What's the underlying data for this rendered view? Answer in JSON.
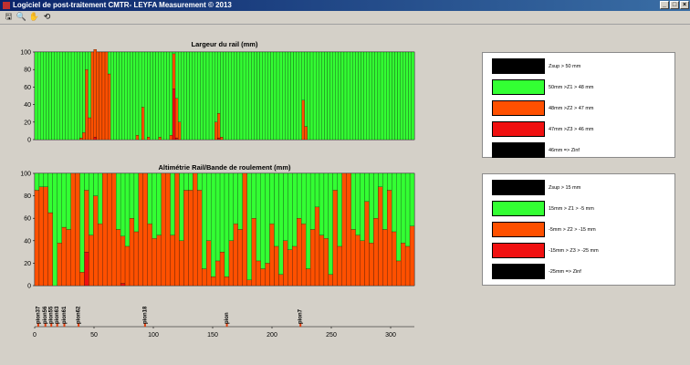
{
  "window": {
    "title": "Logiciel de post-traitement CMTR- LEYFA Measurement © 2013",
    "minimize_glyph": "_",
    "maximize_glyph": "□",
    "close_glyph": "×"
  },
  "toolbar": {
    "icons": [
      {
        "name": "save-icon",
        "glyph": "🖫"
      },
      {
        "name": "zoom-in-icon",
        "glyph": "🔍"
      },
      {
        "name": "pan-hand-icon",
        "glyph": "✋"
      },
      {
        "name": "rotate-icon",
        "glyph": "⟲"
      }
    ]
  },
  "colors": {
    "green": "#33ff33",
    "orange": "#ff5000",
    "red": "#f01010",
    "black": "#000000",
    "sleeper": "#e04010"
  },
  "chart_data": [
    {
      "type": "bar",
      "stacked": true,
      "title": "Largeur du rail (mm)",
      "ylim": [
        0,
        100
      ],
      "yticks": [
        0,
        20,
        40,
        60,
        80,
        100
      ],
      "xlim": [
        0,
        320
      ],
      "series_order": [
        "red",
        "orange",
        "green"
      ],
      "orange": [
        0,
        0,
        0,
        0,
        0,
        0,
        0,
        0,
        0,
        0,
        0,
        0,
        0,
        0,
        0,
        0,
        2,
        8,
        80,
        25,
        100,
        100,
        100,
        100,
        100,
        100,
        75,
        0,
        0,
        0,
        0,
        0,
        0,
        0,
        0,
        0,
        5,
        0,
        37,
        0,
        3,
        0,
        0,
        0,
        3,
        0,
        0,
        0,
        5,
        40,
        45,
        20,
        0,
        0,
        0,
        0,
        0,
        0,
        0,
        0,
        0,
        0,
        0,
        0,
        20,
        28,
        3,
        0,
        0,
        0,
        0,
        0,
        0,
        0,
        0,
        0,
        0,
        0,
        0,
        0,
        0,
        0,
        0,
        0,
        0,
        0,
        0,
        0,
        0,
        0,
        0,
        0,
        0,
        0,
        0,
        45,
        15,
        0,
        0,
        0,
        0,
        0,
        0,
        0,
        0,
        0,
        0,
        0,
        0,
        0,
        0,
        0,
        0,
        0,
        0,
        0,
        0,
        0,
        0,
        0,
        0,
        0,
        0,
        0,
        0,
        0,
        0,
        0,
        0,
        0,
        0,
        0,
        0,
        0,
        0
      ],
      "red": [
        0,
        0,
        0,
        0,
        0,
        0,
        0,
        0,
        0,
        0,
        0,
        0,
        0,
        0,
        0,
        0,
        0,
        0,
        0,
        0,
        0,
        3,
        0,
        0,
        0,
        0,
        0,
        0,
        0,
        0,
        0,
        0,
        0,
        0,
        0,
        0,
        0,
        0,
        0,
        0,
        0,
        0,
        0,
        0,
        0,
        0,
        0,
        0,
        0,
        58,
        2,
        0,
        0,
        0,
        0,
        0,
        0,
        0,
        0,
        0,
        0,
        0,
        0,
        0,
        0,
        2,
        0,
        0,
        0,
        0,
        0,
        0,
        0,
        0,
        0,
        0,
        0,
        0,
        0,
        0,
        0,
        0,
        0,
        0,
        0,
        0,
        0,
        0,
        0,
        0,
        0,
        0,
        0,
        0,
        0,
        0,
        0,
        0,
        0,
        0,
        0,
        0,
        0,
        0,
        0,
        0,
        0,
        0,
        0,
        0,
        0,
        0,
        0,
        0,
        0,
        0,
        0,
        0,
        0,
        0,
        0,
        0,
        0,
        0,
        0,
        0,
        0,
        0,
        0,
        0,
        0,
        0,
        0,
        0,
        0,
        0,
        0,
        0,
        0
      ]
    },
    {
      "type": "bar",
      "stacked": true,
      "title": "Altimétrie Rail/Bande de roulement (mm)",
      "ylim": [
        0,
        100
      ],
      "yticks": [
        0,
        20,
        40,
        60,
        80,
        100
      ],
      "xlim": [
        0,
        320
      ],
      "xticks": [
        0,
        50,
        100,
        150,
        200,
        250,
        300
      ],
      "series_order": [
        "red",
        "orange",
        "green"
      ],
      "orange": [
        85,
        88,
        88,
        65,
        0,
        38,
        52,
        50,
        100,
        100,
        12,
        55,
        45,
        80,
        55,
        100,
        100,
        100,
        50,
        42,
        35,
        60,
        48,
        100,
        100,
        55,
        42,
        45,
        100,
        100,
        45,
        100,
        40,
        85,
        85,
        100,
        85,
        15,
        40,
        8,
        22,
        30,
        8,
        40,
        55,
        50,
        100,
        5,
        60,
        22,
        15,
        20,
        55,
        35,
        10,
        40,
        32,
        35,
        60,
        55,
        15,
        50,
        70,
        45,
        42,
        10,
        85,
        35,
        100,
        100,
        50,
        45,
        40,
        75,
        38,
        60,
        88,
        50,
        85,
        48,
        22,
        38,
        35,
        53
      ],
      "red": [
        0,
        0,
        0,
        0,
        0,
        0,
        0,
        0,
        0,
        0,
        0,
        30,
        0,
        0,
        0,
        0,
        0,
        0,
        0,
        2,
        0,
        0,
        0,
        0,
        0,
        0,
        0,
        0,
        0,
        0,
        0,
        0,
        0,
        0,
        0,
        0,
        0,
        0,
        0,
        0,
        0,
        0,
        0,
        0,
        0,
        0,
        0,
        0,
        0,
        0,
        0,
        0,
        0,
        0,
        0,
        0,
        0,
        0,
        0,
        0,
        0,
        0,
        0,
        0,
        0,
        0,
        0,
        0,
        0,
        0,
        0,
        0,
        0,
        0,
        0,
        0,
        0,
        0,
        0,
        0,
        0,
        0,
        0,
        0
      ]
    },
    {
      "type": "scatter",
      "name": "sleeper-markers",
      "xlim": [
        0,
        320
      ],
      "labels": [
        {
          "text": "pion37",
          "x": 3
        },
        {
          "text": "pion56",
          "x": 9
        },
        {
          "text": "pion55",
          "x": 14
        },
        {
          "text": "pion63",
          "x": 19
        },
        {
          "text": "pion61",
          "x": 25
        },
        {
          "text": "pion62",
          "x": 37
        },
        {
          "text": "pion18",
          "x": 93
        },
        {
          "text": "pion",
          "x": 162
        },
        {
          "text": "pion7",
          "x": 224
        }
      ]
    }
  ],
  "legend_top": [
    {
      "color": "#000000",
      "text": "Zsup > 50 mm"
    },
    {
      "color": "#33ff33",
      "text": "50mm >Z1 > 48 mm"
    },
    {
      "color": "#ff5000",
      "text": "48mm >Z2 > 47 mm"
    },
    {
      "color": "#f01010",
      "text": "47mm >Z3 > 46 mm"
    },
    {
      "color": "#000000",
      "text": "46mm => Zinf"
    }
  ],
  "legend_bottom": [
    {
      "color": "#000000",
      "text": "Zsup > 15 mm"
    },
    {
      "color": "#33ff33",
      "text": "15mm > Z1 > -5 mm"
    },
    {
      "color": "#ff5000",
      "text": "-5mm > Z2 > -15 mm"
    },
    {
      "color": "#f01010",
      "text": "-15mm > Z3 > -25 mm"
    },
    {
      "color": "#000000",
      "text": "-25mm => Zinf"
    }
  ]
}
